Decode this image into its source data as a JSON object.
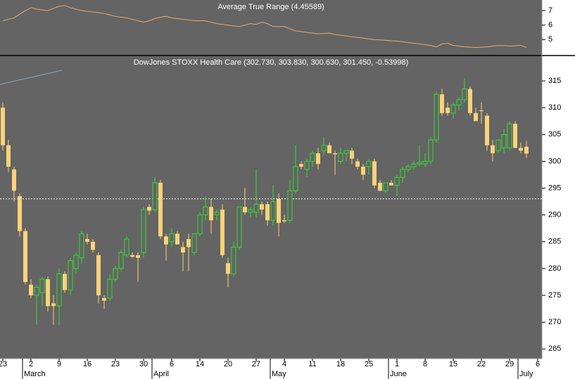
{
  "chart_data": [
    {
      "type": "line",
      "title": "Average True Range (4.45589)",
      "color": "#f0a868",
      "ylim": [
        3.95,
        7.73
      ],
      "yticks": [
        5,
        6,
        7
      ],
      "values": [
        6.3,
        6.4,
        6.5,
        6.75,
        7.0,
        7.2,
        7.1,
        7.05,
        7.0,
        7.15,
        7.3,
        7.35,
        7.2,
        7.1,
        7.0,
        6.95,
        6.9,
        6.85,
        6.8,
        6.7,
        6.6,
        6.55,
        6.5,
        6.4,
        6.3,
        6.2,
        6.3,
        6.45,
        6.55,
        6.6,
        6.5,
        6.45,
        6.4,
        6.35,
        6.3,
        6.3,
        6.3,
        6.2,
        6.1,
        6.05,
        6.0,
        5.95,
        5.9,
        6.0,
        6.1,
        6.05,
        6.2,
        6.1,
        5.9,
        5.9,
        5.9,
        5.75,
        5.6,
        5.55,
        5.5,
        5.45,
        5.4,
        5.42,
        5.45,
        5.35,
        5.3,
        5.25,
        5.2,
        5.15,
        5.1,
        5.05,
        5.0,
        4.98,
        4.95,
        4.92,
        4.9,
        4.85,
        4.8,
        4.75,
        4.7,
        4.65,
        4.6,
        4.5,
        4.7,
        4.75,
        4.6,
        4.55,
        4.5,
        4.48,
        4.45,
        4.48,
        4.5,
        4.55,
        4.6,
        4.58,
        4.55,
        4.58,
        4.6,
        4.46
      ]
    },
    {
      "type": "candlestick",
      "title": "DowJones STOXX Health Care (302.730, 303.830, 300.630, 301.450, -0.53998)",
      "up_color": "#33dd33",
      "down_color": "#fad27a",
      "ylim": [
        263.2,
        319.6
      ],
      "yticks": [
        265,
        270,
        275,
        280,
        285,
        290,
        295,
        300,
        305,
        310,
        315
      ],
      "hline": 293,
      "categories": [
        "23",
        null,
        null,
        null,
        null,
        "2",
        null,
        null,
        null,
        null,
        "9",
        null,
        null,
        null,
        null,
        "16",
        null,
        null,
        null,
        null,
        "23",
        null,
        null,
        null,
        null,
        "30",
        null,
        null,
        null,
        null,
        "6",
        null,
        null,
        null,
        null,
        "14",
        null,
        null,
        null,
        null,
        "20",
        null,
        null,
        null,
        null,
        "27",
        null,
        null,
        null,
        null,
        "4",
        null,
        null,
        null,
        null,
        "11",
        null,
        null,
        null,
        null,
        "18",
        null,
        null,
        null,
        null,
        "25",
        null,
        null,
        null,
        null,
        "1",
        null,
        null,
        null,
        null,
        "8",
        null,
        null,
        null,
        null,
        "15",
        null,
        null,
        null,
        null,
        "22",
        null,
        null,
        null,
        null,
        "29",
        null,
        null,
        null,
        null,
        "6"
      ],
      "month_labels": [
        null,
        null,
        null,
        null,
        "March",
        null,
        null,
        null,
        null,
        null,
        null,
        null,
        null,
        null,
        null,
        null,
        null,
        null,
        null,
        null,
        null,
        null,
        null,
        null,
        null,
        null,
        null,
        "April",
        null,
        null,
        null,
        null,
        null,
        null,
        null,
        null,
        null,
        null,
        null,
        null,
        null,
        null,
        null,
        null,
        null,
        null,
        null,
        null,
        "May",
        null,
        null,
        null,
        null,
        null,
        null,
        null,
        null,
        null,
        null,
        null,
        null,
        null,
        null,
        null,
        null,
        null,
        null,
        null,
        null,
        "June",
        null,
        null,
        null,
        null,
        null,
        null,
        null,
        null,
        null,
        null,
        null,
        null,
        null,
        null,
        null,
        null,
        null,
        null,
        null,
        null,
        null,
        null,
        "July",
        null,
        null,
        null
      ],
      "open": [
        310,
        303,
        298.5,
        293.5,
        287,
        277,
        275,
        275.5,
        278,
        273.5,
        273,
        279,
        276,
        280,
        282,
        285.5,
        285,
        282.5,
        274.5,
        274.5,
        278,
        280,
        282.5,
        282.5,
        282.5,
        283,
        291.5,
        291,
        296,
        286,
        285,
        286.5,
        284,
        285.5,
        283,
        286.5,
        290,
        291.5,
        290,
        291,
        281,
        279,
        284,
        291.5,
        290.5,
        290.5,
        292,
        292,
        289,
        293,
        289,
        289,
        294.5,
        299.5,
        298.5,
        300,
        301.5,
        302,
        303,
        301.5,
        300,
        301.5,
        302,
        300,
        299,
        299,
        300,
        296,
        294.5,
        296,
        295.5,
        297,
        298.5,
        299,
        299.5,
        299.5,
        300,
        304,
        312.5,
        310,
        309,
        310.5,
        311.5,
        313.5,
        309,
        309.5,
        308.5,
        303,
        302,
        302.5,
        302.5,
        307,
        302.5,
        302.73,
        null,
        null
      ],
      "high": [
        311,
        304,
        299,
        294,
        287.5,
        278,
        277,
        278.5,
        278.5,
        275,
        280,
        279.5,
        282,
        283,
        287,
        286.5,
        285.5,
        283,
        275,
        279,
        280.5,
        283.5,
        286,
        283,
        283,
        291.5,
        292,
        297,
        296.5,
        286.5,
        287.5,
        287,
        285,
        286.5,
        286.5,
        290.5,
        293.5,
        293,
        291,
        292,
        282,
        285,
        291.5,
        295,
        291.5,
        298.5,
        292.5,
        292.5,
        295.5,
        294,
        290,
        296.5,
        303,
        300,
        300.5,
        302,
        302.5,
        304.5,
        303.5,
        302,
        302.5,
        302,
        302.5,
        300.5,
        299.5,
        300.5,
        300.5,
        296.5,
        296,
        296.5,
        297.5,
        299,
        299.5,
        300,
        303,
        301.5,
        304.5,
        313,
        313.5,
        311,
        311,
        312,
        315.5,
        314,
        310,
        311,
        309,
        304,
        304,
        306,
        307.5,
        307.5,
        303.5,
        303.83,
        null,
        null
      ],
      "low": [
        302,
        298,
        292.5,
        286,
        277,
        274.5,
        269.5,
        273,
        272,
        269.5,
        269.5,
        275.5,
        275,
        279,
        281,
        284.5,
        283,
        273.5,
        272.5,
        274,
        277.5,
        279.5,
        282,
        282,
        277.5,
        282,
        290,
        290.5,
        285.5,
        281.5,
        284,
        284.5,
        279.5,
        279.5,
        282.5,
        286,
        289,
        286.5,
        289,
        282,
        276.5,
        278.5,
        283.5,
        290,
        289.5,
        289.5,
        290,
        288,
        288,
        286,
        288.5,
        288.5,
        294,
        298.5,
        297,
        299,
        298.5,
        301,
        301.5,
        297.5,
        299.5,
        300,
        299.5,
        298.5,
        296.5,
        297.5,
        295,
        294.5,
        294,
        295.5,
        293.5,
        296,
        298,
        298.5,
        299,
        299,
        299.5,
        303.5,
        308.5,
        308.5,
        308,
        309.5,
        311,
        308.5,
        307.5,
        307,
        302,
        300,
        301.5,
        301.5,
        302,
        302.5,
        301.5,
        300.63,
        null,
        null
      ],
      "close": [
        303,
        299,
        294.5,
        287,
        277.5,
        275,
        276.5,
        278,
        273,
        273,
        279,
        276,
        281.5,
        282.5,
        286.5,
        285,
        283.5,
        275,
        274,
        278,
        280,
        283,
        285.5,
        282.2,
        282,
        291,
        290.8,
        296,
        286,
        284.5,
        286.5,
        284.5,
        283,
        284,
        286.5,
        290,
        291.5,
        289,
        290.5,
        282.5,
        279,
        284,
        291.5,
        290.5,
        291,
        292,
        291,
        289,
        292.5,
        288.5,
        288.8,
        294.5,
        299,
        299,
        300,
        301.5,
        299.5,
        303,
        301.5,
        301.3,
        301.5,
        302,
        300.5,
        299,
        297.5,
        300,
        295.5,
        294.5,
        296,
        295.5,
        297,
        298.5,
        299,
        299.5,
        299.8,
        300,
        304,
        312.5,
        309,
        309,
        310.5,
        311.5,
        313.5,
        309,
        307.5,
        309.4,
        303,
        301.5,
        304,
        305,
        307,
        302.5,
        302,
        301.45,
        null,
        null
      ]
    }
  ]
}
